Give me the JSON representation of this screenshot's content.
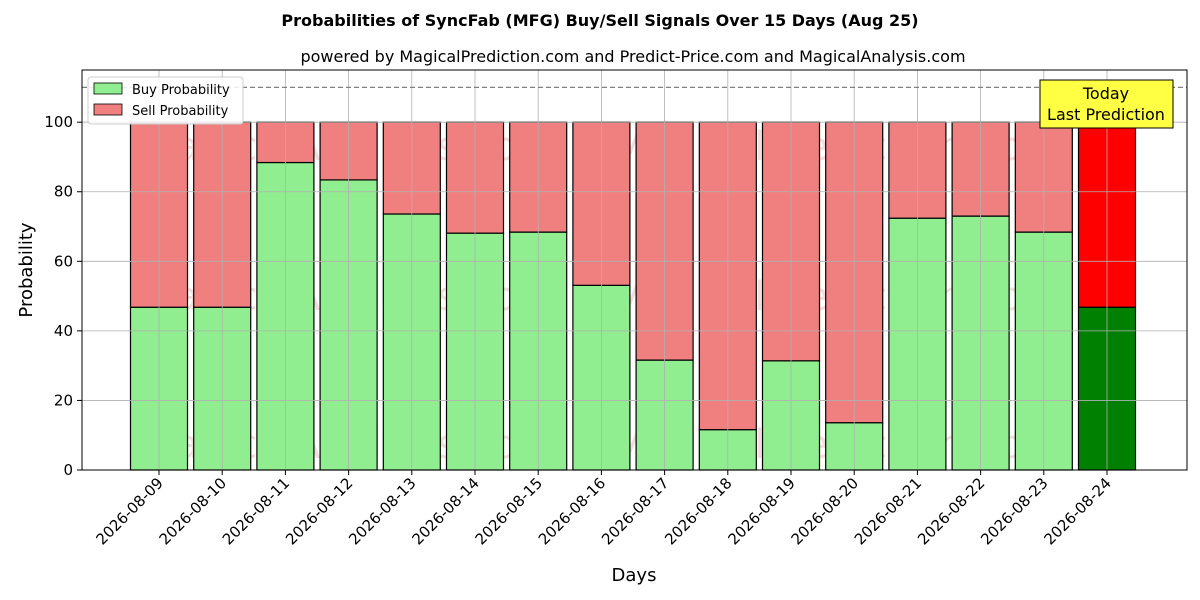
{
  "chart_data": {
    "type": "bar",
    "title": "Probabilities of SyncFab (MFG) Buy/Sell Signals Over 15 Days (Aug 25)",
    "subtitle": "powered by MagicalPrediction.com and Predict-Price.com and MagicalAnalysis.com",
    "xlabel": "Days",
    "ylabel": "Probability",
    "ylim": [
      0,
      115
    ],
    "yticks": [
      0,
      20,
      40,
      60,
      80,
      100
    ],
    "reference_line": 110,
    "grid": true,
    "legend_position": "top-left",
    "categories": [
      "2026-08-09",
      "2026-08-10",
      "2026-08-11",
      "2026-08-12",
      "2026-08-13",
      "2026-08-14",
      "2026-08-15",
      "2026-08-16",
      "2026-08-17",
      "2026-08-18",
      "2026-08-19",
      "2026-08-20",
      "2026-08-21",
      "2026-08-22",
      "2026-08-23",
      "2026-08-24"
    ],
    "series": [
      {
        "name": "Buy Probability",
        "values": [
          46.8,
          46.8,
          88.4,
          83.4,
          73.6,
          68.1,
          68.4,
          53.1,
          31.6,
          11.6,
          31.4,
          13.6,
          72.4,
          73.0,
          68.4,
          46.8
        ],
        "color": "#90ee90",
        "highlight_color": "#008000"
      },
      {
        "name": "Sell Probability",
        "values": [
          53.2,
          53.2,
          11.6,
          16.6,
          26.4,
          31.9,
          31.6,
          46.9,
          68.4,
          88.4,
          68.6,
          86.4,
          27.6,
          27.0,
          31.6,
          53.2
        ],
        "color": "#f08080",
        "highlight_color": "#ff0000"
      }
    ],
    "highlight_index": 15,
    "annotation": {
      "line1": "Today",
      "line2": "Last Prediction",
      "bg": "#ffff44"
    },
    "watermarks": [
      "MagicalAnalysis.com",
      "MagicalPrediction.com"
    ]
  }
}
